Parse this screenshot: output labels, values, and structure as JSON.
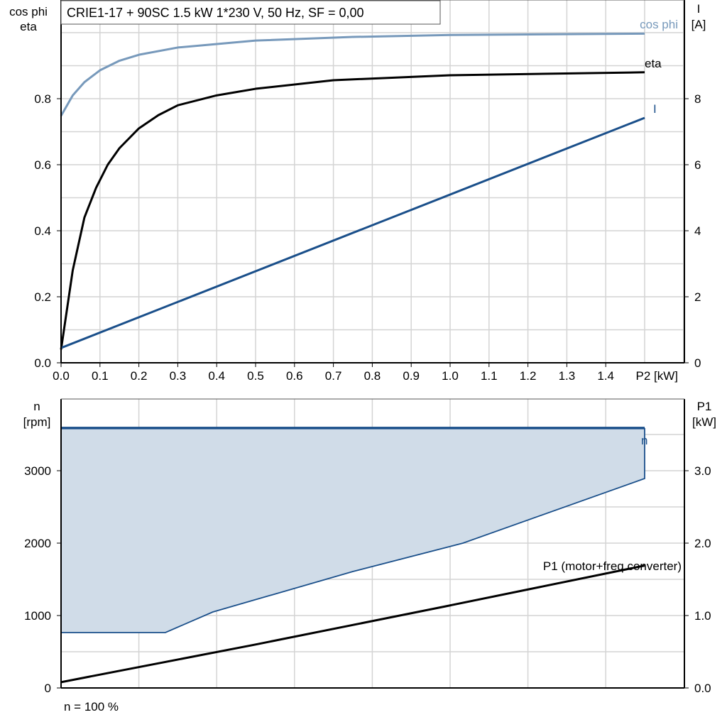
{
  "chart_data": [
    {
      "type": "line",
      "title": "CRIE1-17 + 90SC   1.5 kW   1*230 V, 50 Hz, SF = 0,00",
      "xlabel": "P2 [kW]",
      "ylabel_left": [
        "cos phi",
        "eta"
      ],
      "ylabel_right": [
        "I",
        "[A]"
      ],
      "xlim": [
        0,
        1.6
      ],
      "ylim_left": [
        0,
        1.1
      ],
      "ylim_right": [
        0,
        11
      ],
      "grid": true,
      "x_ticks": [
        "0.0",
        "0.1",
        "0.2",
        "0.3",
        "0.4",
        "0.5",
        "0.6",
        "0.7",
        "0.8",
        "0.9",
        "1.0",
        "1.1",
        "1.2",
        "1.3",
        "1.4"
      ],
      "y_left_ticks": [
        "0.0",
        "0.2",
        "0.4",
        "0.6",
        "0.8"
      ],
      "y_right_ticks": [
        "0",
        "2",
        "4",
        "6",
        "8"
      ],
      "series": [
        {
          "name": "cos phi",
          "axis": "left",
          "color": "#7799bb",
          "x": [
            0,
            0.03,
            0.06,
            0.1,
            0.15,
            0.2,
            0.3,
            0.5,
            0.75,
            1.0,
            1.5
          ],
          "y": [
            0.748,
            0.81,
            0.85,
            0.886,
            0.915,
            0.933,
            0.955,
            0.976,
            0.987,
            0.993,
            0.997
          ]
        },
        {
          "name": "eta",
          "axis": "left",
          "color": "#000000",
          "x": [
            0,
            0.03,
            0.06,
            0.09,
            0.12,
            0.15,
            0.2,
            0.25,
            0.3,
            0.4,
            0.5,
            0.7,
            1.0,
            1.5
          ],
          "y": [
            0.04,
            0.28,
            0.44,
            0.53,
            0.6,
            0.65,
            0.71,
            0.75,
            0.78,
            0.81,
            0.83,
            0.856,
            0.871,
            0.88
          ]
        },
        {
          "name": "I",
          "axis": "right",
          "color": "#1a4f8a",
          "x": [
            0,
            1.5
          ],
          "y": [
            0.45,
            7.42
          ]
        }
      ]
    },
    {
      "type": "area",
      "xlim": [
        0,
        1.6
      ],
      "ylabel_left": [
        "n",
        "[rpm]"
      ],
      "ylabel_right": [
        "P1",
        "[kW]"
      ],
      "ylim_left": [
        0,
        3980
      ],
      "ylim_right": [
        0,
        3.98
      ],
      "grid": true,
      "y_left_ticks": [
        "0",
        "1000",
        "2000",
        "3000"
      ],
      "y_right_ticks": [
        "0.0",
        "1.0",
        "2.0",
        "3.0"
      ],
      "footnote": "n = 100 %",
      "series": [
        {
          "name": "n",
          "axis": "left",
          "color": "#1a4f8a",
          "fill": "#d0dce8",
          "x": [
            0,
            1.5
          ],
          "y": [
            3590,
            3590
          ],
          "lower_bound": {
            "x": [
              0,
              0.268,
              0.39,
              0.75,
              1.033,
              1.5
            ],
            "y": [
              765,
              765,
              1049,
              1608,
              2000,
              2892
            ]
          }
        },
        {
          "name": "P1 (motor+freq.converter)",
          "axis": "right",
          "color": "#000000",
          "x": [
            0,
            0.5,
            1.0,
            1.5
          ],
          "y": [
            0.08,
            0.6,
            1.14,
            1.69
          ]
        }
      ]
    }
  ]
}
